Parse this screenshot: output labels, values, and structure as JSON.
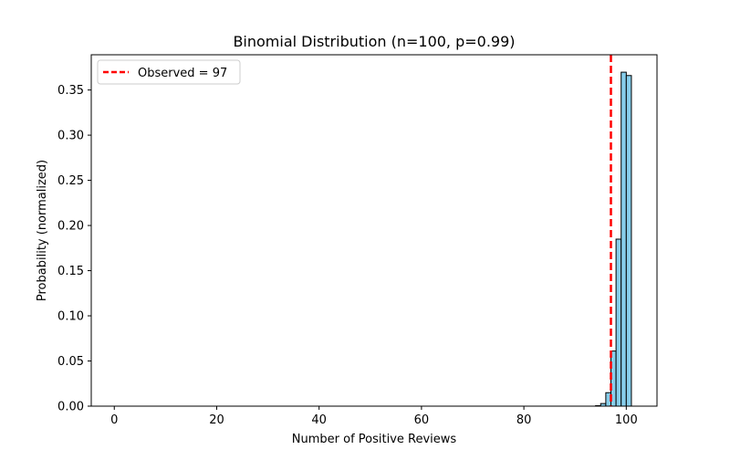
{
  "chart_data": {
    "type": "bar",
    "title": "Binomial Distribution (n=100, p=0.99)",
    "xlabel": "Number of Positive Reviews",
    "ylabel": "Probability (normalized)",
    "xlim": [
      -4.5,
      106
    ],
    "ylim": [
      0,
      0.389
    ],
    "xticks": [
      0,
      20,
      40,
      60,
      80,
      100
    ],
    "xtick_labels": [
      "0",
      "20",
      "40",
      "60",
      "80",
      "100"
    ],
    "yticks": [
      0,
      0.05,
      0.1,
      0.15,
      0.2,
      0.25,
      0.3,
      0.35
    ],
    "ytick_labels": [
      "0.00",
      "0.05",
      "0.10",
      "0.15",
      "0.20",
      "0.25",
      "0.30",
      "0.35"
    ],
    "grid": false,
    "bar_color": "#87CEEB",
    "bar_edge_color": "#000000",
    "bars": [
      {
        "x": 94,
        "value": 0.0005
      },
      {
        "x": 95,
        "value": 0.0029
      },
      {
        "x": 96,
        "value": 0.0149
      },
      {
        "x": 97,
        "value": 0.061
      },
      {
        "x": 98,
        "value": 0.1849
      },
      {
        "x": 99,
        "value": 0.3697
      },
      {
        "x": 100,
        "value": 0.366
      }
    ],
    "reference_line": {
      "x": 97,
      "label": "Observed = 97",
      "color": "#ff0000",
      "style": "dashed"
    },
    "legend": {
      "placement": "top-left",
      "entries": [
        "Observed = 97"
      ]
    }
  }
}
